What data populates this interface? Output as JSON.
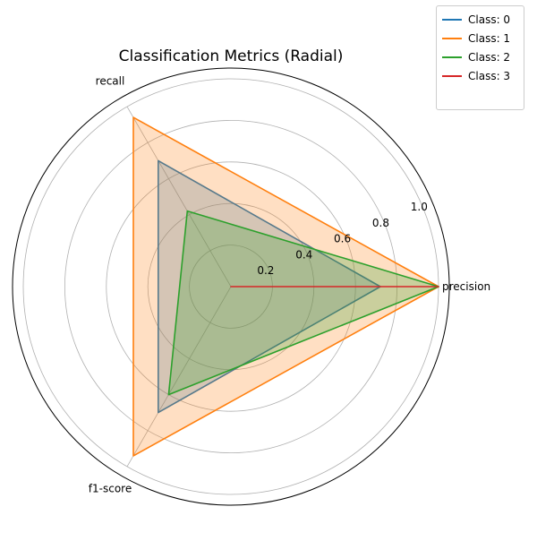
{
  "chart_data": {
    "type": "radar",
    "title": "Classification Metrics (Radial)",
    "axes": [
      "precision",
      "recall",
      "f1-score"
    ],
    "radial_ticks": [
      "0.2",
      "0.4",
      "0.6",
      "0.8",
      "1.0"
    ],
    "rlim": [
      0,
      1.0
    ],
    "grid": true,
    "legend_position": "top-right",
    "series": [
      {
        "name": "Class: 0",
        "color": "#1f77b4",
        "values": [
          0.72,
          0.7,
          0.7
        ],
        "filled": true
      },
      {
        "name": "Class: 1",
        "color": "#ff7f0e",
        "values": [
          1.0,
          0.94,
          0.94
        ],
        "filled": true
      },
      {
        "name": "Class: 2",
        "color": "#2ca02c",
        "values": [
          1.0,
          0.42,
          0.6
        ],
        "filled": true
      },
      {
        "name": "Class: 3",
        "color": "#d62728",
        "values": [
          1.0,
          0.0,
          0.0
        ],
        "filled": false
      }
    ]
  }
}
